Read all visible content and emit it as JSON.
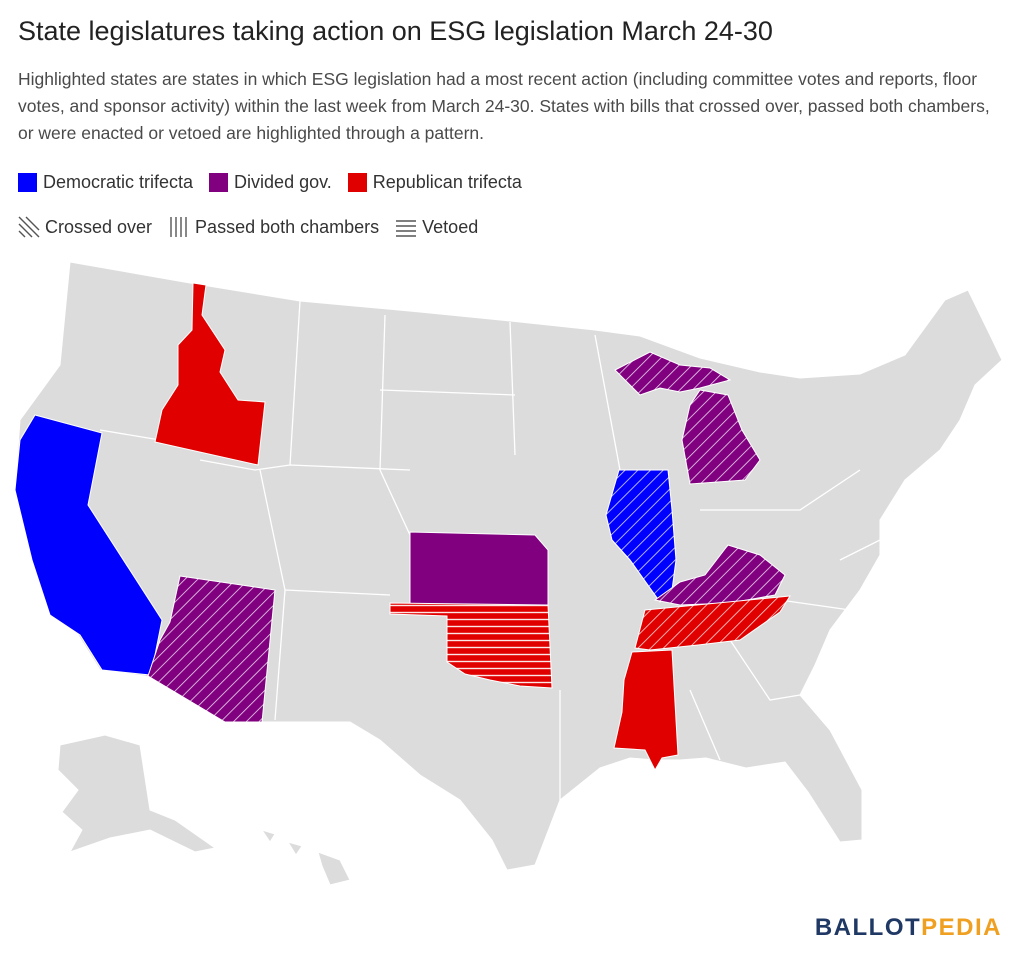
{
  "title": "State legislatures taking action on ESG legislation March 24-30",
  "subtitle": "Highlighted states are states in which ESG legislation had a most recent action (including committee votes and reports, floor votes, and sponsor activity) within the last week from March 24-30. States with bills that crossed over, passed both chambers, or were enacted or vetoed are highlighted through a pattern.",
  "legend": {
    "colors": [
      {
        "label": "Democratic trifecta",
        "color": "#0000ff"
      },
      {
        "label": "Divided gov.",
        "color": "#800080"
      },
      {
        "label": "Republican trifecta",
        "color": "#e00000"
      }
    ],
    "patterns": [
      {
        "label": "Crossed over",
        "pattern": "diagonal"
      },
      {
        "label": "Passed both chambers",
        "pattern": "vertical"
      },
      {
        "label": "Vetoed",
        "pattern": "horizontal"
      }
    ]
  },
  "map": {
    "base_color": "#dcdcdc",
    "border_color": "#ffffff",
    "highlighted_states": [
      {
        "state": "California",
        "government": "Democratic trifecta",
        "color": "#0000ff",
        "pattern": "none"
      },
      {
        "state": "Illinois",
        "government": "Democratic trifecta",
        "color": "#0000ff",
        "pattern": "Crossed over"
      },
      {
        "state": "Idaho",
        "government": "Republican trifecta",
        "color": "#e00000",
        "pattern": "none"
      },
      {
        "state": "Mississippi",
        "government": "Republican trifecta",
        "color": "#e00000",
        "pattern": "none"
      },
      {
        "state": "Tennessee",
        "government": "Republican trifecta",
        "color": "#e00000",
        "pattern": "Crossed over"
      },
      {
        "state": "Oklahoma",
        "government": "Republican trifecta",
        "color": "#e00000",
        "pattern": "Vetoed"
      },
      {
        "state": "Arizona",
        "government": "Divided gov.",
        "color": "#800080",
        "pattern": "Crossed over"
      },
      {
        "state": "Kansas",
        "government": "Divided gov.",
        "color": "#800080",
        "pattern": "none"
      },
      {
        "state": "Kentucky",
        "government": "Divided gov.",
        "color": "#800080",
        "pattern": "Crossed over"
      },
      {
        "state": "Michigan",
        "government": "Divided gov.",
        "color": "#800080",
        "pattern": "Crossed over"
      }
    ]
  },
  "brand": {
    "part1": "BALLOT",
    "part2": "PEDIA"
  }
}
